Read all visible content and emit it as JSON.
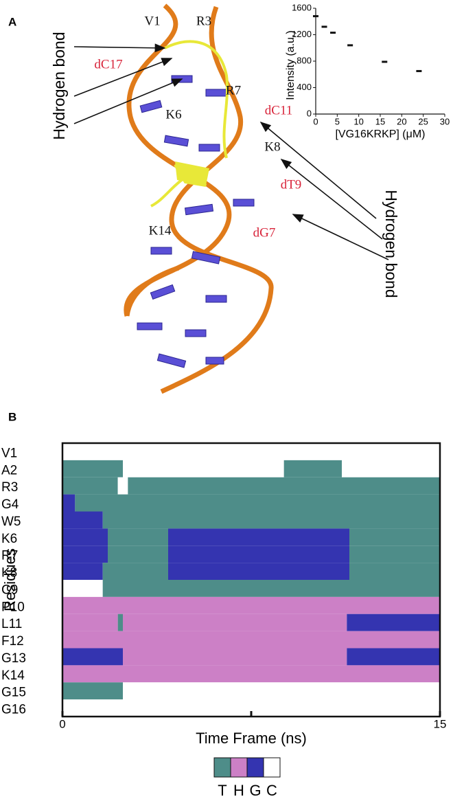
{
  "panel_a": {
    "label": "A",
    "annotations": [
      {
        "text": "V1",
        "color": "#111111"
      },
      {
        "text": "R3",
        "color": "#111111"
      },
      {
        "text": "dC17",
        "color": "#d8243a"
      },
      {
        "text": "R7",
        "color": "#111111"
      },
      {
        "text": "K6",
        "color": "#111111"
      },
      {
        "text": "dC11",
        "color": "#d8243a"
      },
      {
        "text": "K8",
        "color": "#111111"
      },
      {
        "text": "dT9",
        "color": "#d8243a"
      },
      {
        "text": "K14",
        "color": "#111111"
      },
      {
        "text": "dG7",
        "color": "#d8243a"
      }
    ],
    "callout_left": "Hydrogen  bond",
    "callout_right": "Hydrogen bond"
  },
  "chart_data": [
    {
      "type": "scatter",
      "y_label": "Intensity (a.u.)",
      "x_label": "[VG16KRKP] (μM)",
      "x": [
        0,
        2,
        4,
        8,
        16,
        24
      ],
      "values": [
        1480,
        1320,
        1230,
        1040,
        790,
        650
      ],
      "color": "#111111",
      "xlim": [
        0,
        30
      ],
      "xticks": [
        0,
        5,
        10,
        15,
        20,
        25,
        30
      ],
      "ylim": [
        0,
        1600
      ],
      "yticks": [
        0,
        400,
        800,
        1200,
        1600
      ]
    },
    {
      "type": "timeline",
      "label": "B",
      "y_label": "Residues",
      "x_label": "Time Frame (ns)",
      "categories": [
        "V1",
        "A2",
        "R3",
        "G4",
        "W5",
        "K6",
        "R7",
        "K8",
        "C9",
        "P10",
        "L11",
        "F12",
        "G13",
        "K14",
        "G15",
        "G16"
      ],
      "xlim": [
        0,
        15
      ],
      "xticks": [
        0,
        15
      ],
      "states": [
        "T",
        "H",
        "G",
        "C"
      ],
      "state_colors": [
        "#4e8d89",
        "#cc80c6",
        "#3434b0",
        "#ffffff"
      ],
      "runs": [
        [
          [
            0,
            15,
            "C"
          ]
        ],
        [
          [
            0,
            2.4,
            "T"
          ],
          [
            2.4,
            8.8,
            "C"
          ],
          [
            8.8,
            11.1,
            "T"
          ],
          [
            11.1,
            15,
            "C"
          ]
        ],
        [
          [
            0,
            2.2,
            "T"
          ],
          [
            2.2,
            2.6,
            "C"
          ],
          [
            2.6,
            15,
            "T"
          ]
        ],
        [
          [
            0,
            0.5,
            "G"
          ],
          [
            0.5,
            15,
            "T"
          ]
        ],
        [
          [
            0,
            1.6,
            "G"
          ],
          [
            1.6,
            15,
            "T"
          ]
        ],
        [
          [
            0,
            1.8,
            "G"
          ],
          [
            1.8,
            4.2,
            "T"
          ],
          [
            4.2,
            11.4,
            "G"
          ],
          [
            11.4,
            15,
            "T"
          ]
        ],
        [
          [
            0,
            1.8,
            "G"
          ],
          [
            1.8,
            4.2,
            "T"
          ],
          [
            4.2,
            11.4,
            "G"
          ],
          [
            11.4,
            15,
            "T"
          ]
        ],
        [
          [
            0,
            1.6,
            "G"
          ],
          [
            1.6,
            4.2,
            "T"
          ],
          [
            4.2,
            11.4,
            "G"
          ],
          [
            11.4,
            15,
            "T"
          ]
        ],
        [
          [
            0,
            1.6,
            "C"
          ],
          [
            1.6,
            15,
            "T"
          ]
        ],
        [
          [
            0,
            15,
            "H"
          ]
        ],
        [
          [
            0,
            2.2,
            "H"
          ],
          [
            2.2,
            2.4,
            "T"
          ],
          [
            2.4,
            11.3,
            "H"
          ],
          [
            11.3,
            15,
            "G"
          ]
        ],
        [
          [
            0,
            15,
            "H"
          ]
        ],
        [
          [
            0,
            2.4,
            "G"
          ],
          [
            2.4,
            11.3,
            "H"
          ],
          [
            11.3,
            15,
            "G"
          ]
        ],
        [
          [
            0,
            15,
            "H"
          ]
        ],
        [
          [
            0,
            2.4,
            "T"
          ],
          [
            2.4,
            15,
            "C"
          ]
        ],
        [
          [
            0,
            15,
            "C"
          ]
        ]
      ]
    }
  ]
}
